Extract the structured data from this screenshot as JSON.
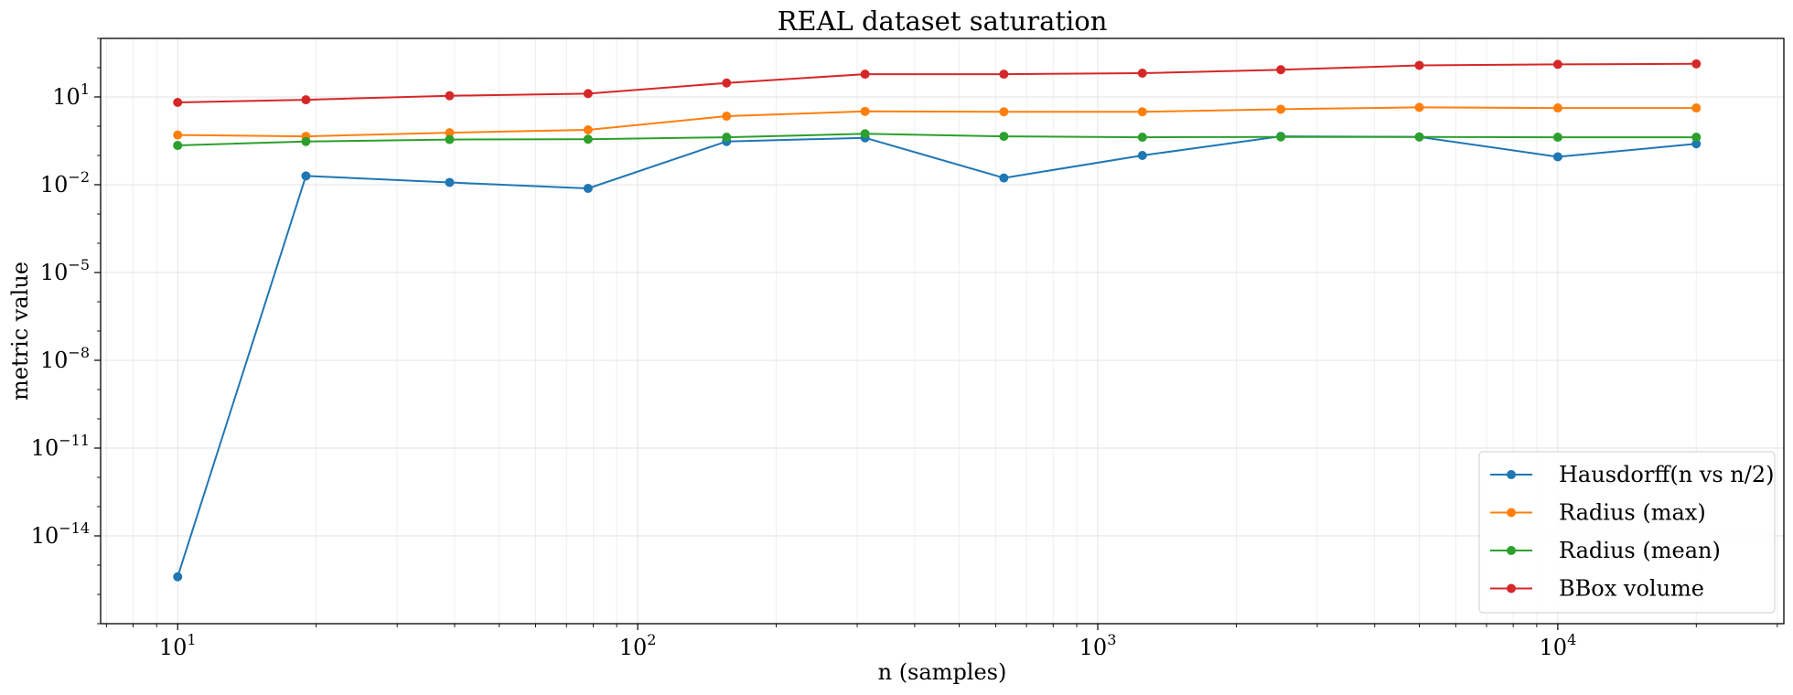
{
  "chart_data": {
    "type": "line",
    "title": "REAL dataset saturation",
    "xlabel": "n (samples)",
    "ylabel": "metric value",
    "xscale": "log",
    "yscale": "log",
    "grid": true,
    "legend_position": "lower-right",
    "xlim": [
      6.8,
      31000
    ],
    "ylim_log10": [
      -17,
      3
    ],
    "x_ticks": [
      {
        "value": 10,
        "base": "10",
        "exp": "1"
      },
      {
        "value": 100,
        "base": "10",
        "exp": "2"
      },
      {
        "value": 1000,
        "base": "10",
        "exp": "3"
      },
      {
        "value": 10000,
        "base": "10",
        "exp": "4"
      }
    ],
    "y_ticks": [
      {
        "value": 10.0,
        "base": "10",
        "exp": "1"
      },
      {
        "value": 0.01,
        "base": "10",
        "exp": "−2"
      },
      {
        "value": 1e-05,
        "base": "10",
        "exp": "−5"
      },
      {
        "value": 1e-08,
        "base": "10",
        "exp": "−8"
      },
      {
        "value": 1e-11,
        "base": "10",
        "exp": "−11"
      },
      {
        "value": 1e-14,
        "base": "10",
        "exp": "−14"
      }
    ],
    "x": [
      10,
      19,
      39,
      78,
      156,
      312,
      625,
      1250,
      2500,
      5000,
      10000,
      20000
    ],
    "series": [
      {
        "name": "Hausdorff(n vs n/2)",
        "color": "#1f77b4",
        "values": [
          4e-16,
          0.02,
          0.012,
          0.0075,
          0.3,
          0.4,
          0.017,
          0.1,
          0.45,
          0.43,
          0.09,
          0.25
        ]
      },
      {
        "name": "Radius (max)",
        "color": "#ff7f0e",
        "values": [
          0.5,
          0.45,
          0.6,
          0.75,
          2.2,
          3.2,
          3.1,
          3.1,
          3.8,
          4.4,
          4.2,
          4.2
        ]
      },
      {
        "name": "Radius (mean)",
        "color": "#2ca02c",
        "values": [
          0.22,
          0.3,
          0.35,
          0.36,
          0.42,
          0.55,
          0.45,
          0.42,
          0.43,
          0.43,
          0.42,
          0.42
        ]
      },
      {
        "name": "BBox volume",
        "color": "#d62728",
        "values": [
          6.5,
          8,
          11,
          13,
          30,
          60,
          60,
          65,
          85,
          120,
          130,
          135
        ]
      }
    ]
  }
}
